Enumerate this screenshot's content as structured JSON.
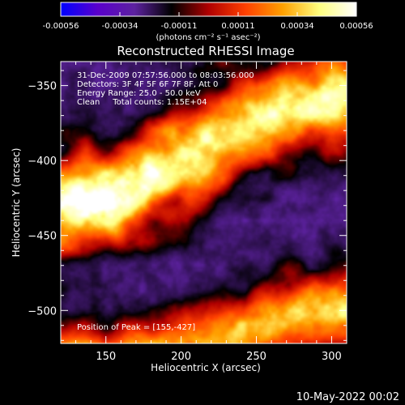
{
  "chart_data": {
    "type": "heatmap",
    "title": "Reconstructed RHESSI Image",
    "xlabel": "Heliocentric X (arcsec)",
    "ylabel": "Heliocentric Y (arcsec)",
    "xlim": [
      120,
      310
    ],
    "ylim": [
      -522,
      -334
    ],
    "xticks": [
      150,
      200,
      250,
      300
    ],
    "yticks": [
      -350,
      -400,
      -450,
      -500
    ],
    "colorbar": {
      "ticks": [
        "-0.00056",
        "-0.00034",
        "-0.00011",
        "0.00011",
        "0.00034",
        "0.00056"
      ],
      "range": [
        -0.00056,
        0.00056
      ],
      "units": "(photons cm⁻² s⁻¹ asec⁻²)",
      "colormap": [
        "#0000ff",
        "#5a00cc",
        "#5d22a0",
        "#000000",
        "#b00000",
        "#ff4000",
        "#ffa000",
        "#ffff80",
        "#ffffff"
      ]
    },
    "annotations": [
      "31-Dec-2009 07:57:56.000 to 08:03:56.000",
      "Detectors: 3F 4F 5F 6F 7F 8F, Att 0",
      "Energy Range: 25.0 - 50.0 keV",
      "Clean     Total counts: 1.15E+04"
    ],
    "peak_label": "Position of Peak = [155,-427]",
    "peak": {
      "x": 155,
      "y": -427
    },
    "ridges": [
      {
        "name": "main",
        "points": [
          [
            120,
            -428
          ],
          [
            145,
            -425
          ],
          [
            175,
            -412
          ],
          [
            205,
            -398
          ],
          [
            235,
            -378
          ],
          [
            265,
            -365
          ],
          [
            310,
            -355
          ]
        ],
        "width": 20,
        "peak": 1.0
      },
      {
        "name": "lower",
        "points": [
          [
            150,
            -533
          ],
          [
            200,
            -525
          ],
          [
            240,
            -512
          ],
          [
            275,
            -504
          ],
          [
            310,
            -500
          ]
        ],
        "width": 15,
        "peak": 0.82
      }
    ]
  },
  "footer": {
    "timestamp": "10-May-2022 00:02"
  }
}
